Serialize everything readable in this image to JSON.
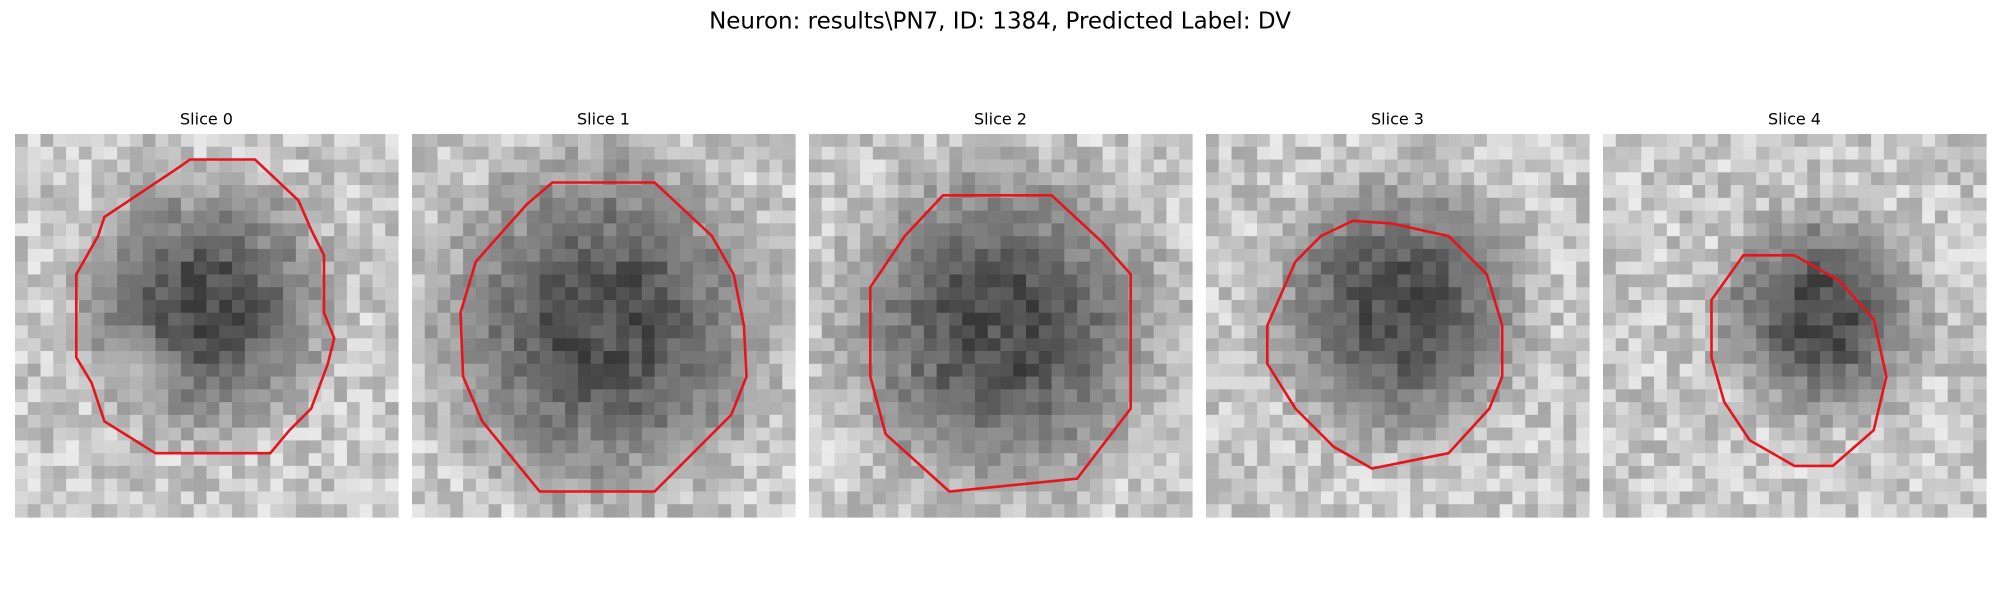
{
  "figure": {
    "title": "Neuron: results\\PN7, ID: 1384, Predicted Label: DV",
    "panels": [
      {
        "title": "Slice 0"
      },
      {
        "title": "Slice 1"
      },
      {
        "title": "Slice 2"
      },
      {
        "title": "Slice 3"
      },
      {
        "title": "Slice 4"
      }
    ]
  }
}
